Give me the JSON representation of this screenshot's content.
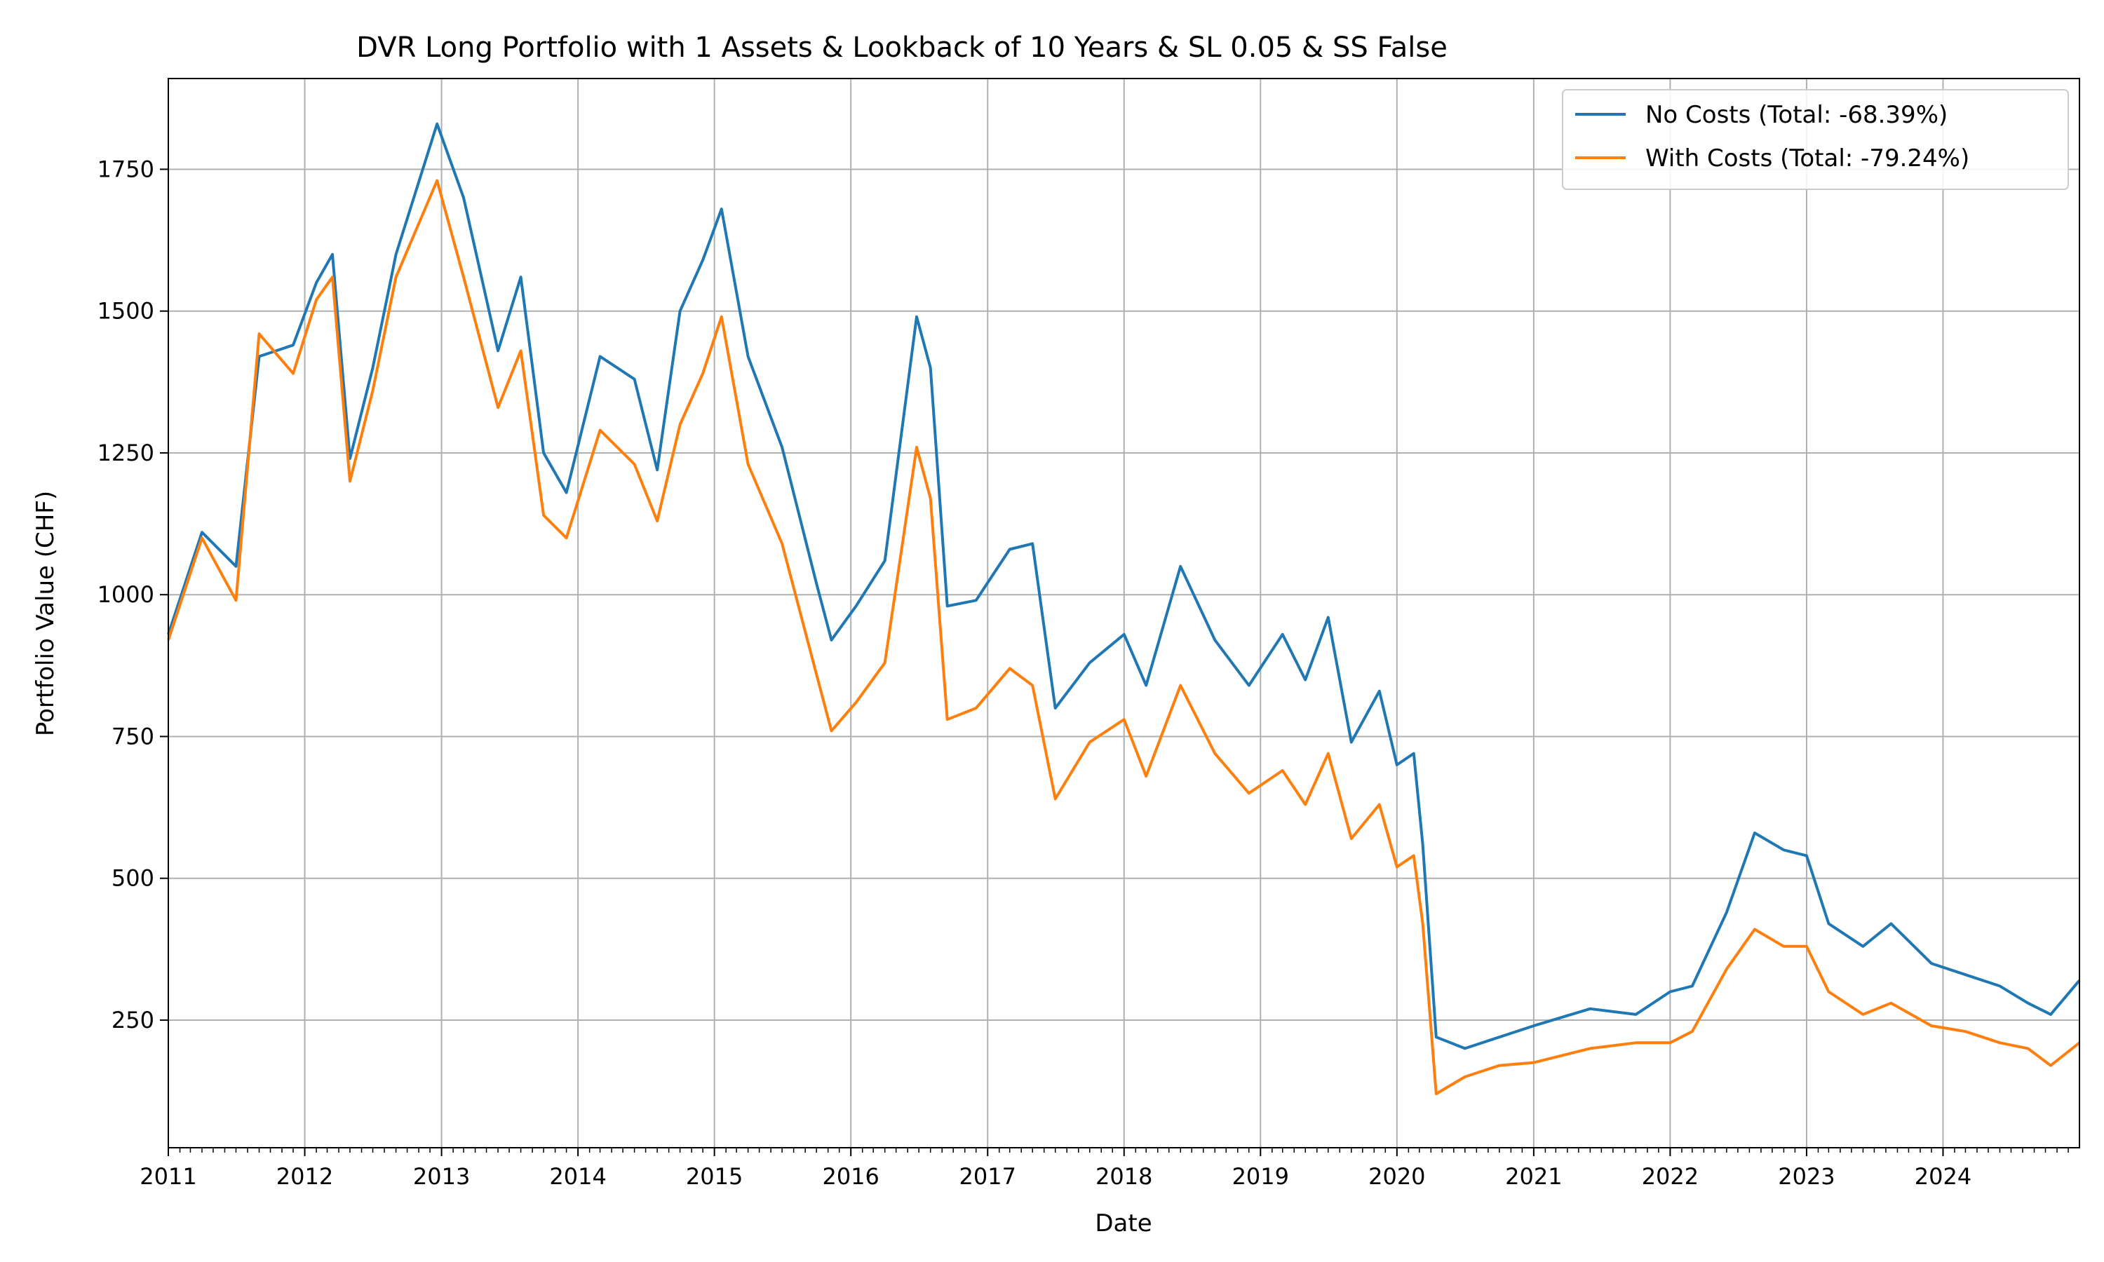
{
  "chart_data": {
    "type": "line",
    "title": "DVR Long Portfolio with 1 Assets & Lookback of 10 Years & SL 0.05 & SS False",
    "xlabel": "Date",
    "ylabel": "Portfolio Value (CHF)",
    "xlim": [
      "2011-01-01",
      "2024-12-31"
    ],
    "ylim": [
      25,
      1910
    ],
    "grid": true,
    "legend_position": "top-right",
    "x_ticks": [
      "2011",
      "2012",
      "2013",
      "2014",
      "2015",
      "2016",
      "2017",
      "2018",
      "2019",
      "2020",
      "2021",
      "2022",
      "2023",
      "2024"
    ],
    "y_ticks": [
      250,
      500,
      750,
      1000,
      1250,
      1500,
      1750
    ],
    "x": [
      "2011-01-01",
      "2011-04-01",
      "2011-07-01",
      "2011-09-01",
      "2011-12-01",
      "2012-02-01",
      "2012-03-15",
      "2012-05-01",
      "2012-07-01",
      "2012-09-01",
      "2012-12-20",
      "2013-03-01",
      "2013-06-01",
      "2013-08-01",
      "2013-10-01",
      "2013-12-01",
      "2014-03-01",
      "2014-06-01",
      "2014-08-01",
      "2014-10-01",
      "2014-12-01",
      "2015-01-20",
      "2015-04-01",
      "2015-07-01",
      "2015-10-01",
      "2015-11-10",
      "2016-01-15",
      "2016-04-01",
      "2016-06-25",
      "2016-08-01",
      "2016-09-15",
      "2016-12-01",
      "2017-03-01",
      "2017-05-01",
      "2017-07-01",
      "2017-10-01",
      "2018-01-01",
      "2018-03-01",
      "2018-06-01",
      "2018-09-01",
      "2018-12-01",
      "2019-03-01",
      "2019-05-01",
      "2019-07-01",
      "2019-09-01",
      "2019-11-15",
      "2020-01-01",
      "2020-02-15",
      "2020-03-10",
      "2020-04-15",
      "2020-07-01",
      "2020-10-01",
      "2021-01-01",
      "2021-06-01",
      "2021-10-01",
      "2022-01-01",
      "2022-03-01",
      "2022-06-01",
      "2022-08-15",
      "2022-11-01",
      "2023-01-01",
      "2023-03-01",
      "2023-06-01",
      "2023-08-15",
      "2023-12-01",
      "2024-03-01",
      "2024-06-01",
      "2024-08-15",
      "2024-10-15",
      "2024-12-31"
    ],
    "series": [
      {
        "name": "No Costs (Total: -68.39%)",
        "color": "#1f77b4",
        "values": [
          930,
          1110,
          1050,
          1420,
          1440,
          1550,
          1600,
          1240,
          1400,
          1600,
          1830,
          1700,
          1430,
          1560,
          1250,
          1180,
          1420,
          1380,
          1220,
          1500,
          1590,
          1680,
          1420,
          1260,
          1020,
          920,
          980,
          1060,
          1490,
          1400,
          980,
          990,
          1080,
          1090,
          800,
          880,
          930,
          840,
          1050,
          920,
          840,
          930,
          850,
          960,
          740,
          830,
          700,
          720,
          560,
          220,
          200,
          220,
          240,
          270,
          260,
          300,
          310,
          440,
          580,
          550,
          540,
          420,
          380,
          420,
          350,
          330,
          310,
          280,
          260,
          320
        ]
      },
      {
        "name": "With Costs (Total: -79.24%)",
        "color": "#ff7f0e",
        "values": [
          920,
          1100,
          990,
          1460,
          1390,
          1520,
          1560,
          1200,
          1360,
          1560,
          1730,
          1560,
          1330,
          1430,
          1140,
          1100,
          1290,
          1230,
          1130,
          1300,
          1390,
          1490,
          1230,
          1090,
          860,
          760,
          810,
          880,
          1260,
          1170,
          780,
          800,
          870,
          840,
          640,
          740,
          780,
          680,
          840,
          720,
          650,
          690,
          630,
          720,
          570,
          630,
          520,
          540,
          420,
          120,
          150,
          170,
          175,
          200,
          210,
          210,
          230,
          340,
          410,
          380,
          380,
          300,
          260,
          280,
          240,
          230,
          210,
          200,
          170,
          210
        ]
      }
    ]
  }
}
